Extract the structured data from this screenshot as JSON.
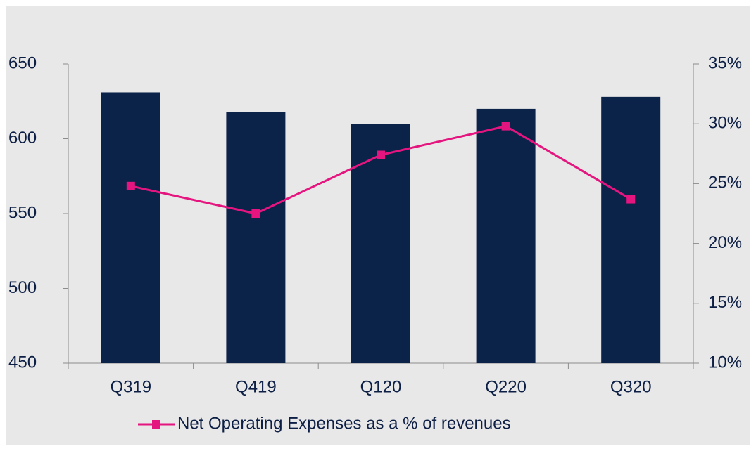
{
  "chart_data": {
    "type": "bar",
    "categories": [
      "Q319",
      "Q419",
      "Q120",
      "Q220",
      "Q320"
    ],
    "series": [
      {
        "type": "bar",
        "color": "#0b2249",
        "values": [
          631,
          618,
          610,
          620,
          628
        ]
      },
      {
        "type": "line",
        "axis": "y2",
        "name": "Net Operating Expenses as a % of revenues",
        "color": "#e5157f",
        "values": [
          24.8,
          22.5,
          27.4,
          29.8,
          23.7
        ]
      }
    ],
    "ylim": [
      450,
      650
    ],
    "yticks": [
      450,
      500,
      550,
      600,
      650
    ],
    "y2lim": [
      10,
      35
    ],
    "y2ticks": [
      {
        "value": 10,
        "label": "10%"
      },
      {
        "value": 15,
        "label": "15%"
      },
      {
        "value": 20,
        "label": "20%"
      },
      {
        "value": 25,
        "label": "25%"
      },
      {
        "value": 30,
        "label": "30%"
      },
      {
        "value": 35,
        "label": "35%"
      }
    ],
    "legend": "bottom",
    "grid": false
  }
}
